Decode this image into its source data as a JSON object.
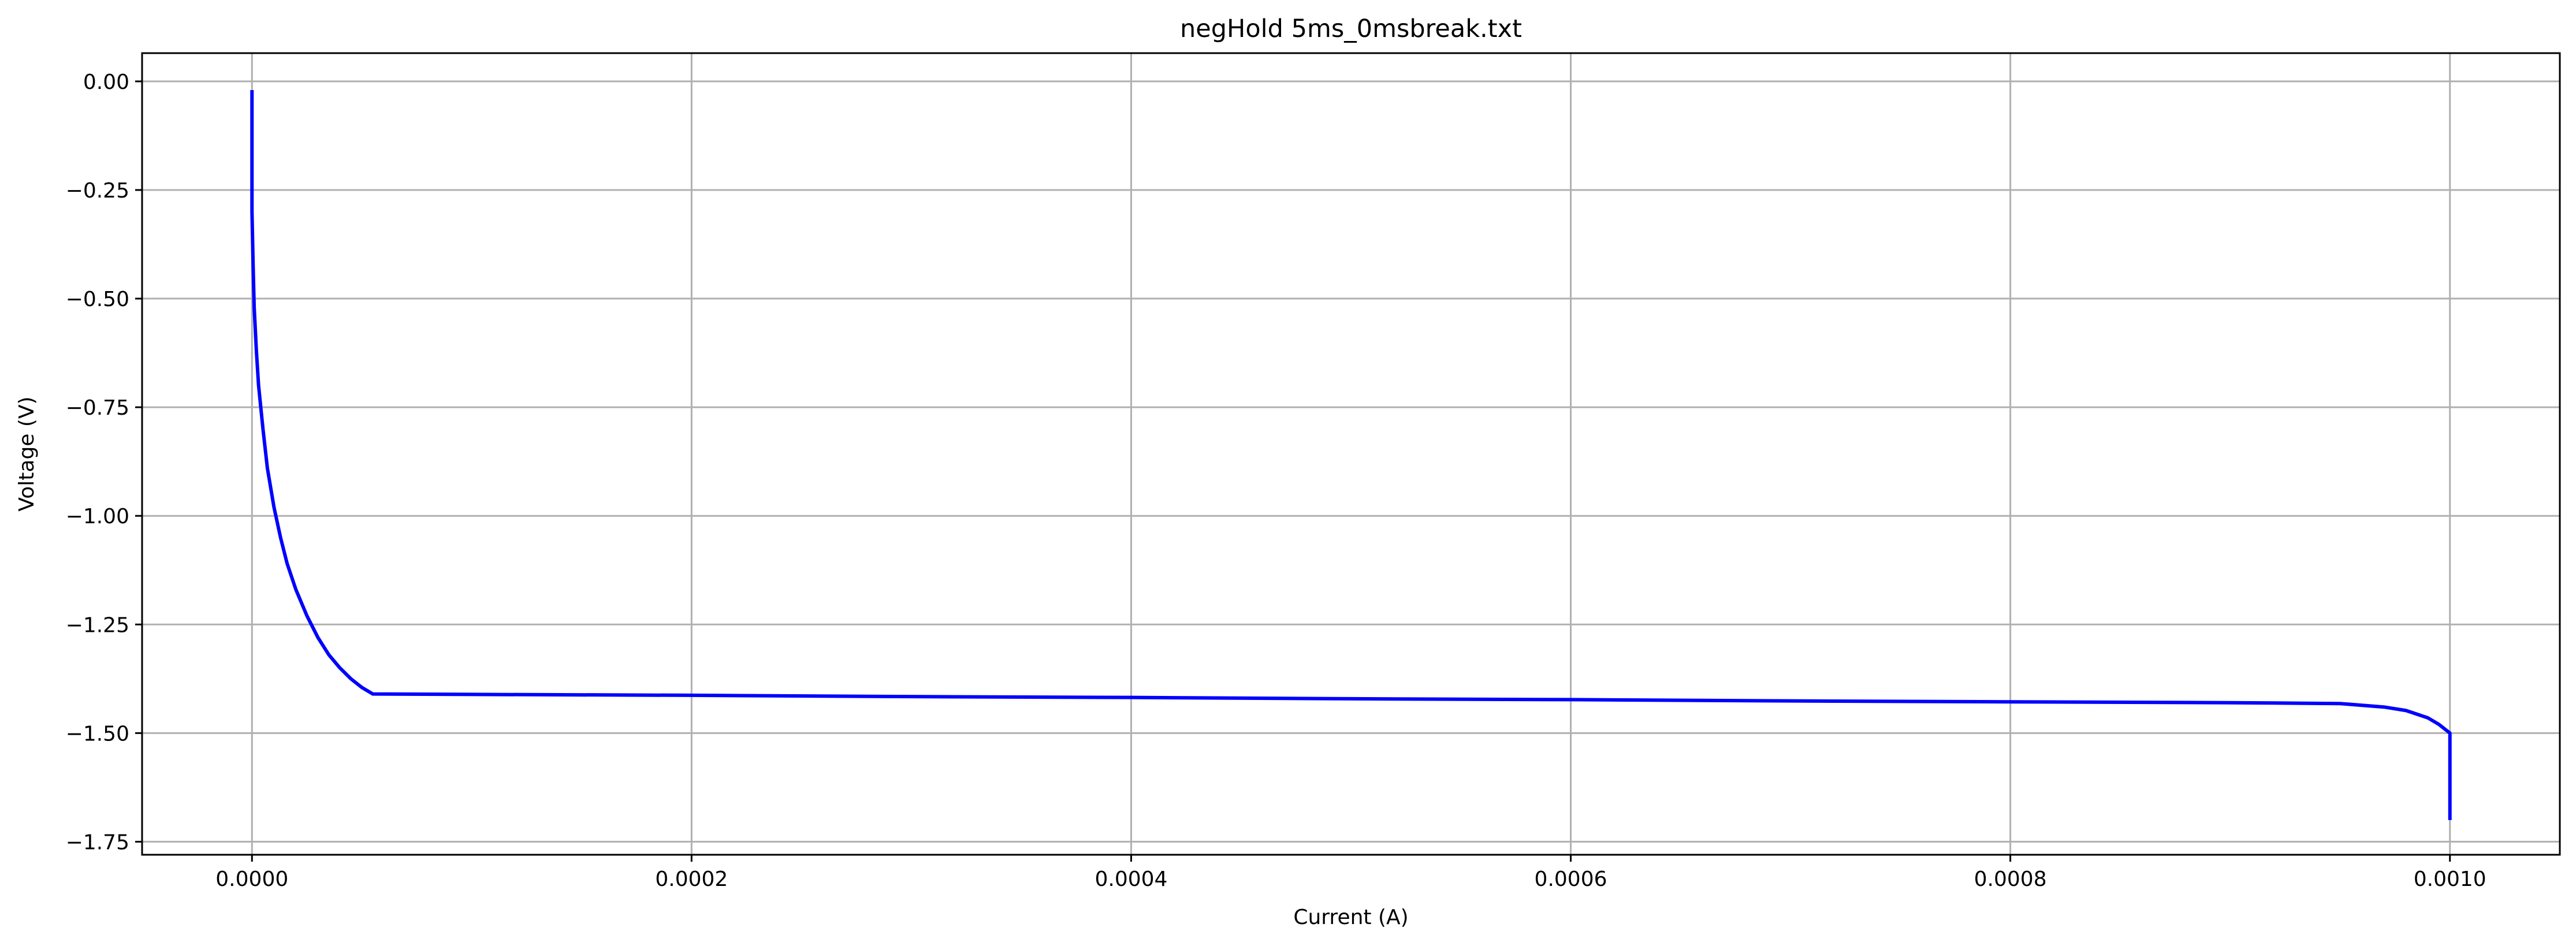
{
  "chart_data": {
    "type": "line",
    "title": "negHold 5ms_0msbreak.txt",
    "xlabel": "Current (A)",
    "ylabel": "Voltage (V)",
    "xlim": [
      -5e-05,
      0.00105
    ],
    "ylim": [
      -1.78,
      0.065
    ],
    "grid": true,
    "x_ticks": [
      0.0,
      0.0002,
      0.0004,
      0.0006,
      0.0008,
      0.001
    ],
    "x_tick_labels": [
      "0.0000",
      "0.0002",
      "0.0004",
      "0.0006",
      "0.0008",
      "0.0010"
    ],
    "y_ticks": [
      0.0,
      -0.25,
      -0.5,
      -0.75,
      -1.0,
      -1.25,
      -1.5,
      -1.75
    ],
    "y_tick_labels": [
      "0.00",
      "−0.25",
      "−0.50",
      "−0.75",
      "−1.00",
      "−1.25",
      "−1.50",
      "−1.75"
    ],
    "colors": {
      "line": "#0000ff",
      "grid": "#b0b0b0",
      "axes": "#000000"
    },
    "series": [
      {
        "x": [
          0.0,
          0.0,
          0.0,
          5e-07,
          1e-06,
          2e-06,
          3e-06,
          5e-06,
          7e-06,
          1e-05,
          1.3e-05,
          1.6e-05,
          2e-05,
          2.5e-05,
          3e-05,
          3.5e-05,
          4e-05,
          4.5e-05,
          5e-05,
          5.5e-05,
          0.0001,
          0.0002,
          0.0003,
          0.0004,
          0.0005,
          0.0006,
          0.0007,
          0.0008,
          0.0009,
          0.00095,
          0.00097,
          0.00098,
          0.00099,
          0.000995,
          0.001,
          0.001
        ],
        "y": [
          -0.02,
          -0.15,
          -0.3,
          -0.42,
          -0.52,
          -0.62,
          -0.7,
          -0.8,
          -0.89,
          -0.98,
          -1.05,
          -1.11,
          -1.17,
          -1.23,
          -1.28,
          -1.32,
          -1.35,
          -1.375,
          -1.395,
          -1.41,
          -1.411,
          -1.413,
          -1.416,
          -1.418,
          -1.421,
          -1.423,
          -1.426,
          -1.428,
          -1.43,
          -1.432,
          -1.44,
          -1.448,
          -1.465,
          -1.48,
          -1.5,
          -1.7
        ]
      }
    ]
  }
}
